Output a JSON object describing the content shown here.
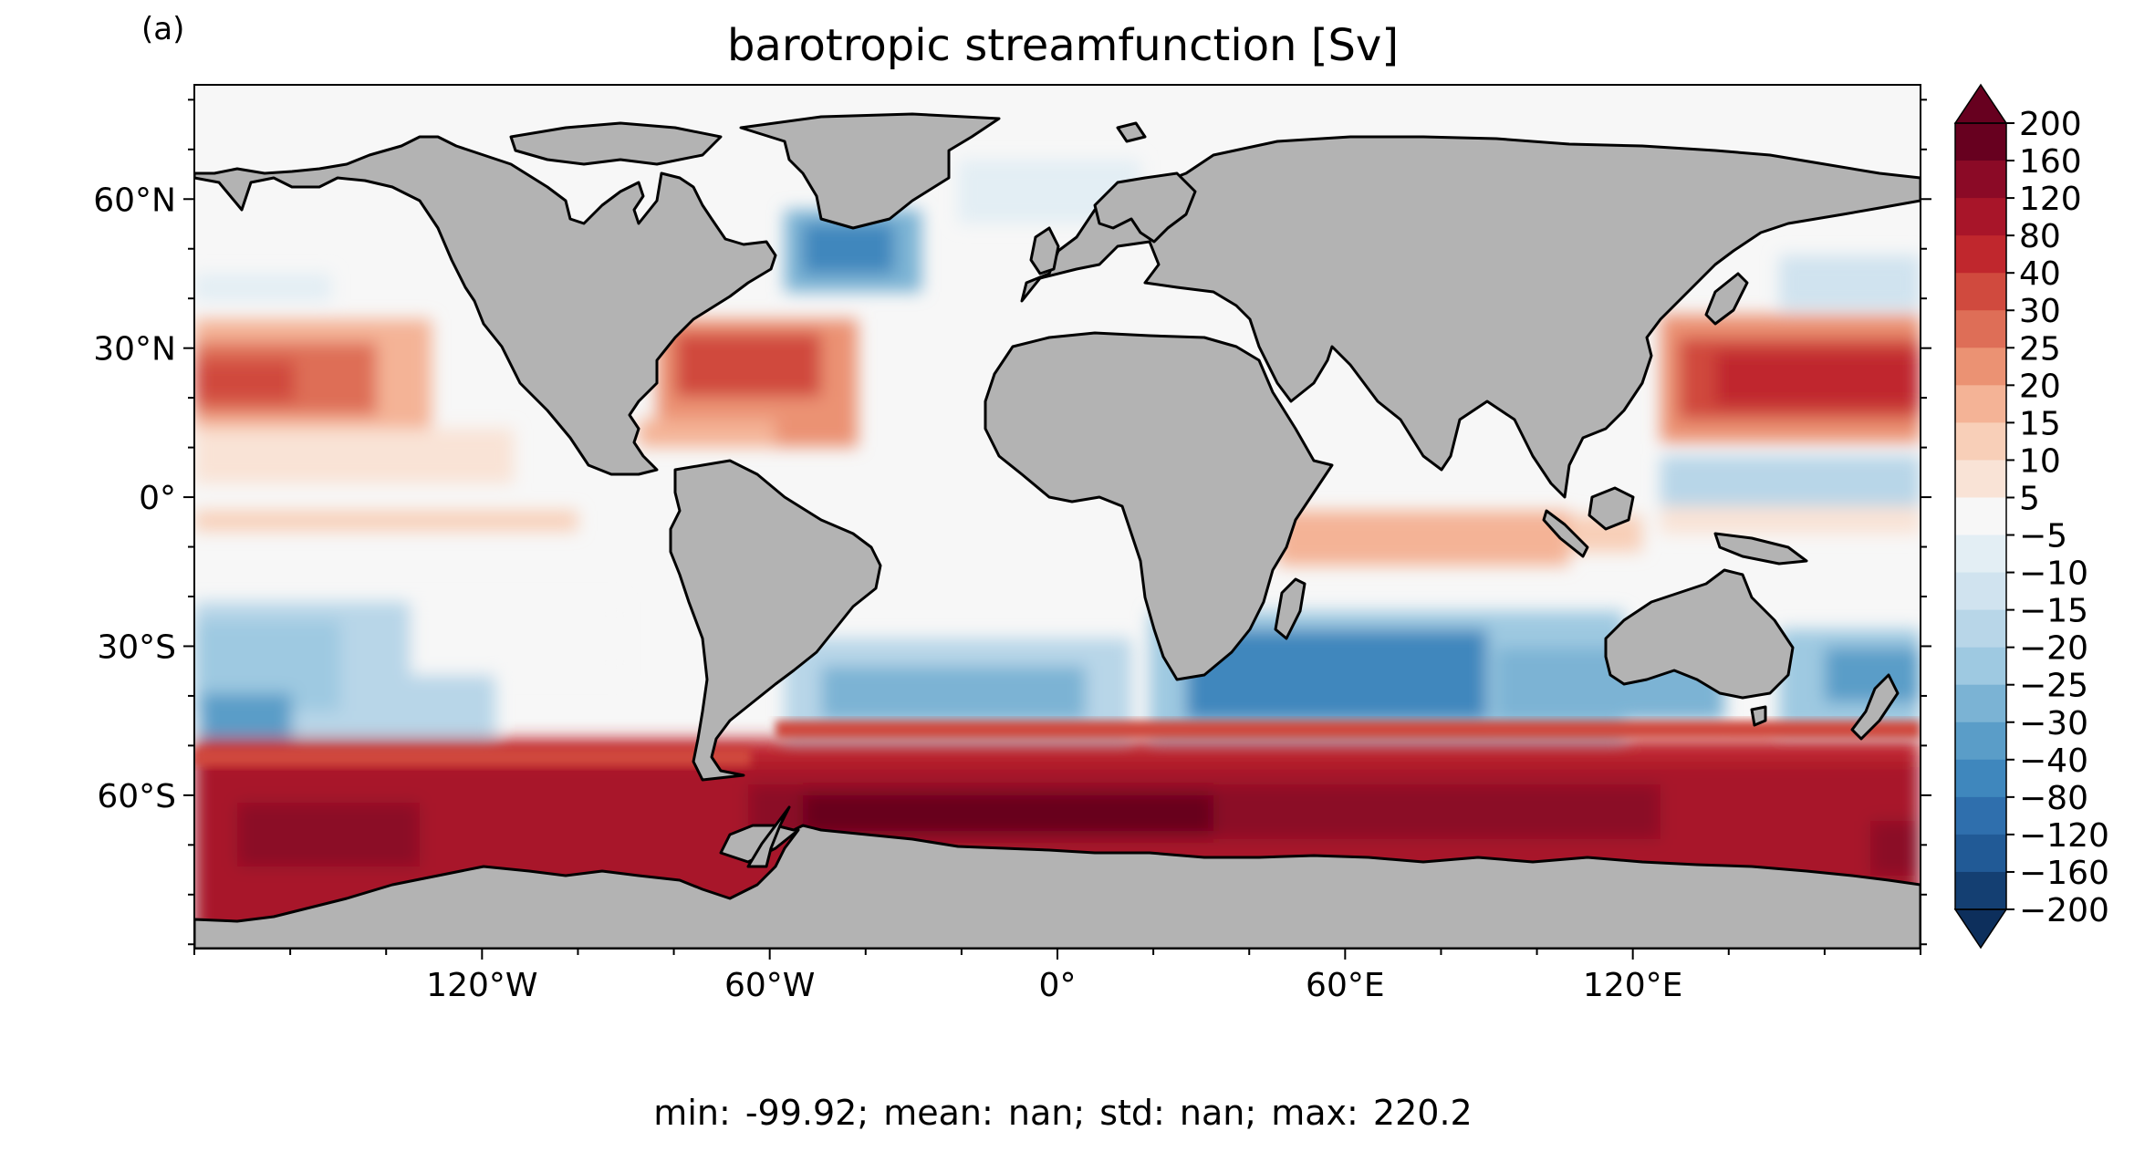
{
  "figure": {
    "panel_label": "(a)",
    "title": "barotropic streamfunction [Sv]",
    "stats": "min: -99.92;        mean: nan;        std: nan;        max: 220.2"
  },
  "axes": {
    "lon_ticks": [
      "120°W",
      "60°W",
      "0°",
      "60°E",
      "120°E"
    ],
    "lat_ticks": [
      "60°N",
      "30°N",
      "0°",
      "30°S",
      "60°S"
    ]
  },
  "colorbar": {
    "extend": "both",
    "tick_labels": [
      "200",
      "160",
      "120",
      "80",
      "40",
      "30",
      "25",
      "20",
      "15",
      "10",
      "5",
      "−5",
      "−10",
      "−15",
      "−20",
      "−25",
      "−30",
      "−40",
      "−80",
      "−120",
      "−160",
      "−200"
    ],
    "colors": [
      "#67001f",
      "#8b0a26",
      "#a81529",
      "#c0272d",
      "#d04a3e",
      "#de6e57",
      "#eb9273",
      "#f4b396",
      "#f8cfb8",
      "#f9e3d6",
      "#f7f7f7",
      "#e3eef4",
      "#d0e3ef",
      "#b8d6e8",
      "#9ec9e1",
      "#7bb3d4",
      "#5a9dc8",
      "#3f87bd",
      "#2f6fad",
      "#215a96",
      "#143f72"
    ],
    "overflow_high": "#67001f",
    "overflow_low": "#0d2f5c"
  },
  "colors": {
    "land": "#b3b3b3",
    "coast": "#000000",
    "ocean_neutral": "#f7f7f7"
  }
}
